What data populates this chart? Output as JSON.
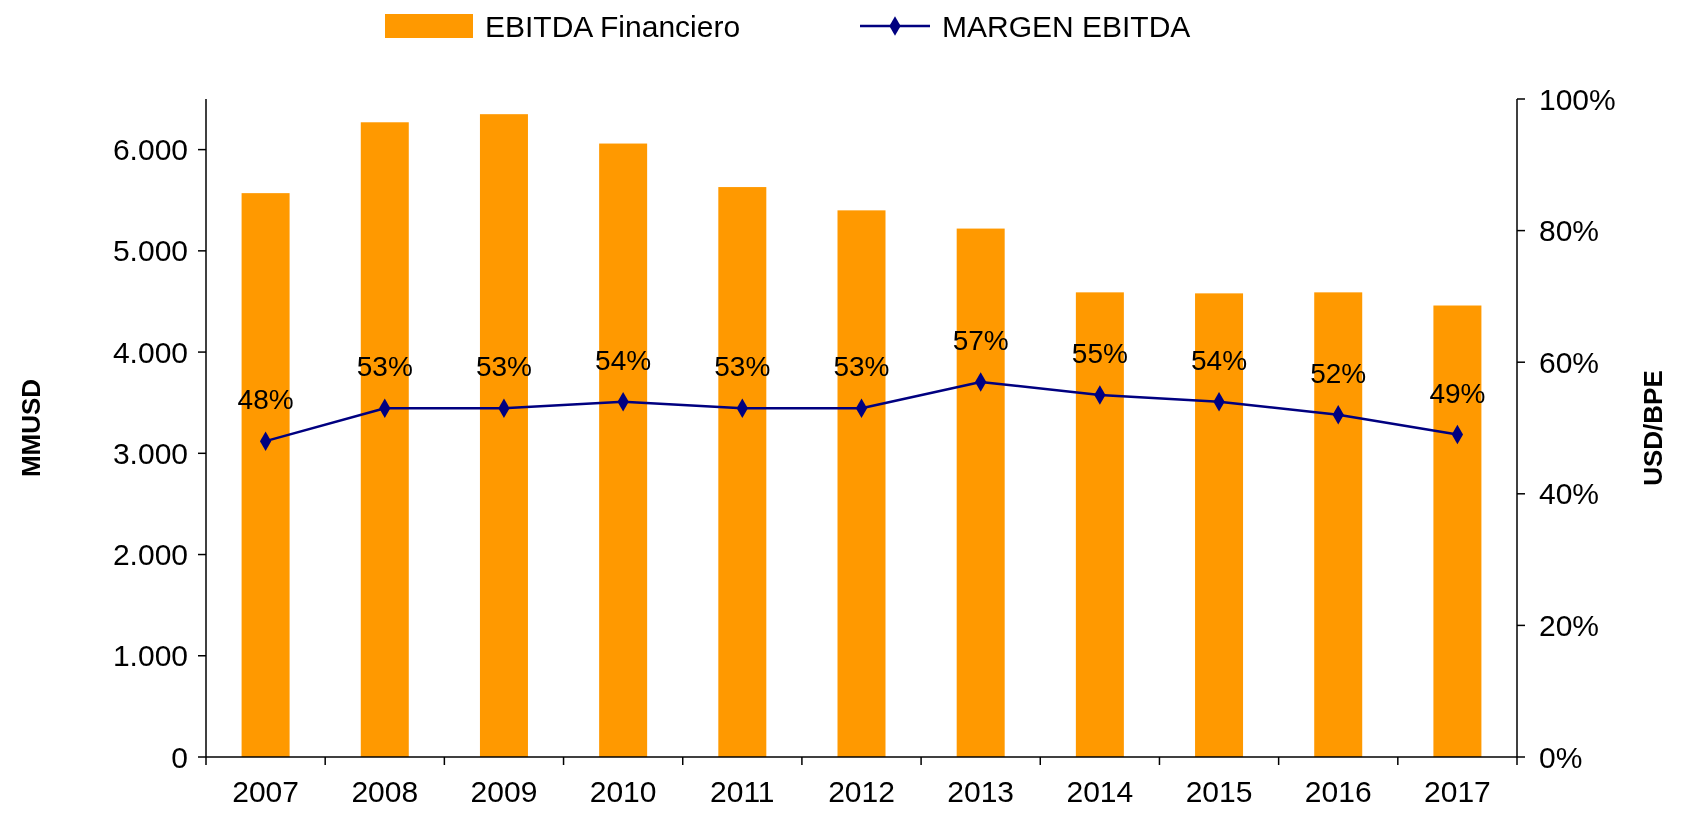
{
  "chart_data": {
    "type": "bar",
    "categories": [
      "2007",
      "2008",
      "2009",
      "2010",
      "2011",
      "2012",
      "2013",
      "2014",
      "2015",
      "2016",
      "2017"
    ],
    "ylabel": "MMUSD",
    "y2label": "USD/BPE",
    "ylim": [
      0,
      6500
    ],
    "yticks": [
      {
        "value": 0,
        "label": "0"
      },
      {
        "value": 1000,
        "label": "1.000"
      },
      {
        "value": 2000,
        "label": "2.000"
      },
      {
        "value": 3000,
        "label": "3.000"
      },
      {
        "value": 4000,
        "label": "4.000"
      },
      {
        "value": 5000,
        "label": "5.000"
      },
      {
        "value": 6000,
        "label": "6.000"
      }
    ],
    "y2lim": [
      0,
      100
    ],
    "y2ticks": [
      {
        "value": 0,
        "label": "0%"
      },
      {
        "value": 20,
        "label": "20%"
      },
      {
        "value": 40,
        "label": "40%"
      },
      {
        "value": 60,
        "label": "60%"
      },
      {
        "value": 80,
        "label": "80%"
      },
      {
        "value": 100,
        "label": "100%"
      }
    ],
    "legend": "top",
    "series": [
      {
        "name": "EBITDA Financiero",
        "color": "#ff9900",
        "values": [
          5570,
          6270,
          6350,
          6060,
          5630,
          5400,
          5220,
          4590,
          4580,
          4590,
          4460
        ]
      },
      {
        "name": "MARGEN EBITDA",
        "type": "line",
        "axis": "y2",
        "color": "#000080",
        "marker": "diamond",
        "values": [
          48,
          53,
          53,
          54,
          53,
          53,
          57,
          55,
          54,
          52,
          49
        ],
        "value_labels": [
          "48%",
          "53%",
          "53%",
          "54%",
          "53%",
          "53%",
          "57%",
          "55%",
          "54%",
          "52%",
          "49%"
        ]
      }
    ]
  }
}
